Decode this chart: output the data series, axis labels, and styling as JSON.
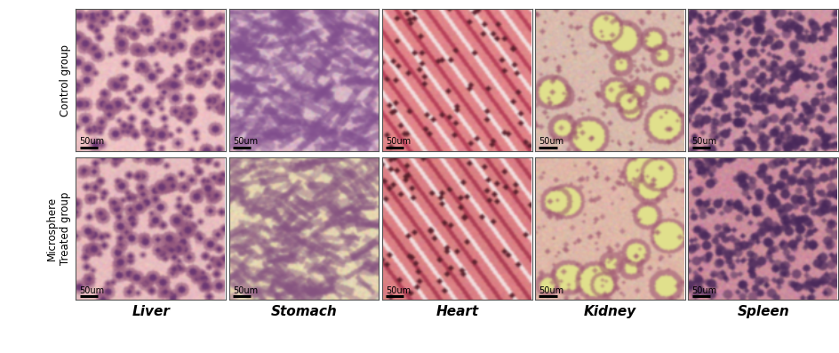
{
  "row_labels": [
    "Control group",
    "Microsphere\nTreated group"
  ],
  "col_labels": [
    "Liver",
    "Stomach",
    "Heart",
    "Kidney",
    "Spleen"
  ],
  "scale_bar_text": "50um",
  "background_color": "#ffffff",
  "border_color": "#555555",
  "row_label_fontsize": 8.5,
  "col_label_fontsize": 11,
  "scale_bar_fontsize": 7,
  "fig_width": 9.45,
  "fig_height": 3.97,
  "organ_params": {
    "liver_ctrl": {
      "base": [
        0.93,
        0.76,
        0.77
      ],
      "cell": [
        0.62,
        0.38,
        0.52
      ],
      "cell_r": [
        3,
        6
      ],
      "n": 200,
      "bg_var": 0.04
    },
    "stomach_ctrl": {
      "base": [
        0.85,
        0.72,
        0.78
      ],
      "cell": [
        0.5,
        0.3,
        0.55
      ],
      "cell_r": [
        2,
        5
      ],
      "n": 300,
      "bg_var": 0.05
    },
    "heart_ctrl": {
      "base": [
        0.88,
        0.52,
        0.54
      ],
      "cell": [
        0.72,
        0.25,
        0.35
      ],
      "cell_r": [
        1,
        2
      ],
      "n": 80,
      "bg_var": 0.03
    },
    "kidney_ctrl": {
      "base": [
        0.85,
        0.73,
        0.68
      ],
      "cell": [
        0.6,
        0.32,
        0.42
      ],
      "cell_r": [
        2,
        5
      ],
      "n": 150,
      "bg_var": 0.04
    },
    "spleen_ctrl": {
      "base": [
        0.82,
        0.58,
        0.65
      ],
      "cell": [
        0.28,
        0.15,
        0.35
      ],
      "cell_r": [
        2,
        4
      ],
      "n": 400,
      "bg_var": 0.05
    },
    "liver_treat": {
      "base": [
        0.91,
        0.74,
        0.75
      ],
      "cell": [
        0.6,
        0.36,
        0.5
      ],
      "cell_r": [
        3,
        6
      ],
      "n": 200,
      "bg_var": 0.04
    },
    "stomach_treat": {
      "base": [
        0.9,
        0.84,
        0.7
      ],
      "cell": [
        0.52,
        0.32,
        0.5
      ],
      "cell_r": [
        2,
        5
      ],
      "n": 280,
      "bg_var": 0.05
    },
    "heart_treat": {
      "base": [
        0.86,
        0.5,
        0.52
      ],
      "cell": [
        0.68,
        0.24,
        0.33
      ],
      "cell_r": [
        1,
        2
      ],
      "n": 80,
      "bg_var": 0.03
    },
    "kidney_treat": {
      "base": [
        0.87,
        0.72,
        0.66
      ],
      "cell": [
        0.62,
        0.34,
        0.44
      ],
      "cell_r": [
        2,
        5
      ],
      "n": 150,
      "bg_var": 0.04
    },
    "spleen_treat": {
      "base": [
        0.8,
        0.55,
        0.62
      ],
      "cell": [
        0.28,
        0.15,
        0.35
      ],
      "cell_r": [
        2,
        4
      ],
      "n": 380,
      "bg_var": 0.05
    }
  }
}
